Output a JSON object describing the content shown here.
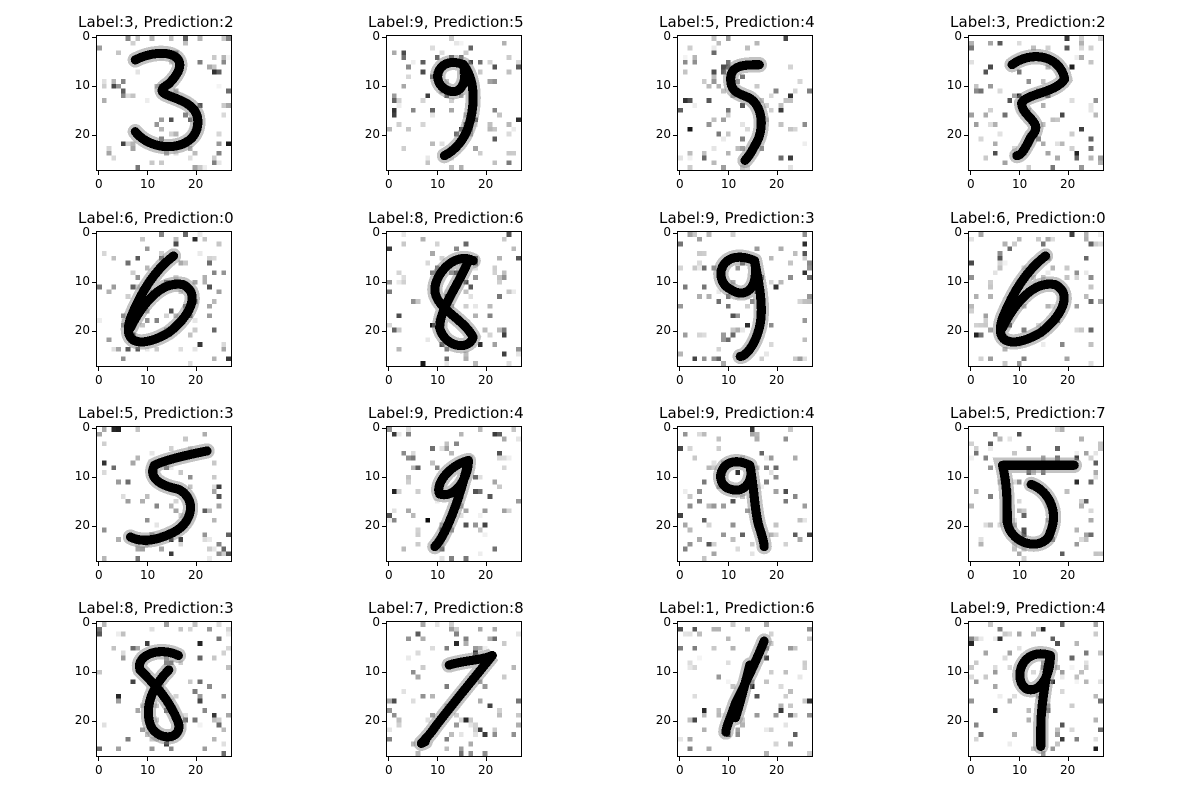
{
  "figure": {
    "panels": [
      {
        "label_text": "Label:3, Prediction:2",
        "digit": "3"
      },
      {
        "label_text": "Label:9, Prediction:5",
        "digit": "9"
      },
      {
        "label_text": "Label:5, Prediction:4",
        "digit": "5"
      },
      {
        "label_text": "Label:3, Prediction:2",
        "digit": "3b"
      },
      {
        "label_text": "Label:6, Prediction:0",
        "digit": "6"
      },
      {
        "label_text": "Label:8, Prediction:6",
        "digit": "8"
      },
      {
        "label_text": "Label:9, Prediction:3",
        "digit": "9b"
      },
      {
        "label_text": "Label:6, Prediction:0",
        "digit": "6"
      },
      {
        "label_text": "Label:5, Prediction:3",
        "digit": "5b"
      },
      {
        "label_text": "Label:9, Prediction:4",
        "digit": "9c"
      },
      {
        "label_text": "Label:9, Prediction:4",
        "digit": "9d"
      },
      {
        "label_text": "Label:5, Prediction:7",
        "digit": "5c"
      },
      {
        "label_text": "Label:8, Prediction:3",
        "digit": "8b"
      },
      {
        "label_text": "Label:7, Prediction:8",
        "digit": "7"
      },
      {
        "label_text": "Label:1, Prediction:6",
        "digit": "1"
      },
      {
        "label_text": "Label:9, Prediction:4",
        "digit": "9e"
      }
    ],
    "x_ticks": [
      "0",
      "10",
      "20"
    ],
    "y_ticks": [
      "0",
      "10",
      "20"
    ],
    "colors": {
      "ink": "#000000",
      "background": "#ffffff"
    }
  }
}
